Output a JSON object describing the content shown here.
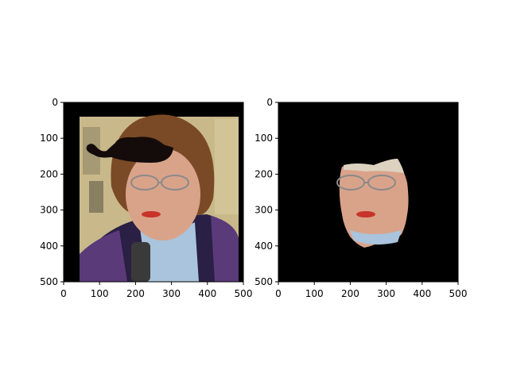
{
  "colors": {
    "background": "#ffffff",
    "axis": "#000000",
    "image_black": "#000000",
    "photo_bg": "#c9b98a",
    "hair": "#7a4a26",
    "skin": "#d9a38a",
    "skin_shadow": "#b9806a",
    "sweater": "#a9c4dc",
    "jacket": "#2a1f44",
    "jacket_purple": "#5b3a7a",
    "mustache": "#140c0a",
    "lips": "#c8332a",
    "glasses": "#8a8a8a",
    "mic": "#3a3a3a",
    "building": "#bfae7c",
    "window": "#6e6750"
  },
  "chart_data": [
    {
      "type": "image",
      "panel": "left",
      "description_icon": "face-with-mustache-image",
      "xlim": [
        0,
        500
      ],
      "ylim": [
        500,
        0
      ],
      "xticks": [
        0,
        100,
        200,
        300,
        400,
        500
      ],
      "yticks": [
        0,
        100,
        200,
        300,
        400,
        500
      ],
      "xtick_labels": [
        "0",
        "100",
        "200",
        "300",
        "400",
        "500"
      ],
      "ytick_labels": [
        "0",
        "100",
        "200",
        "300",
        "400",
        "500"
      ],
      "photo_extent": {
        "x0": 45,
        "x1": 490,
        "y0": 40,
        "y1": 500
      },
      "mustache_extent": {
        "x0": 60,
        "x1": 310,
        "y0": 95,
        "y1": 170
      }
    },
    {
      "type": "image",
      "panel": "right",
      "description_icon": "masked-face-image",
      "xlim": [
        0,
        500
      ],
      "ylim": [
        500,
        0
      ],
      "xticks": [
        0,
        100,
        200,
        300,
        400,
        500
      ],
      "yticks": [
        0,
        100,
        200,
        300,
        400,
        500
      ],
      "xtick_labels": [
        "0",
        "100",
        "200",
        "300",
        "400",
        "500"
      ],
      "ytick_labels": [
        "0",
        "100",
        "200",
        "300",
        "400",
        "500"
      ],
      "face_extent": {
        "x0": 170,
        "x1": 370,
        "y0": 160,
        "y1": 410
      }
    }
  ]
}
